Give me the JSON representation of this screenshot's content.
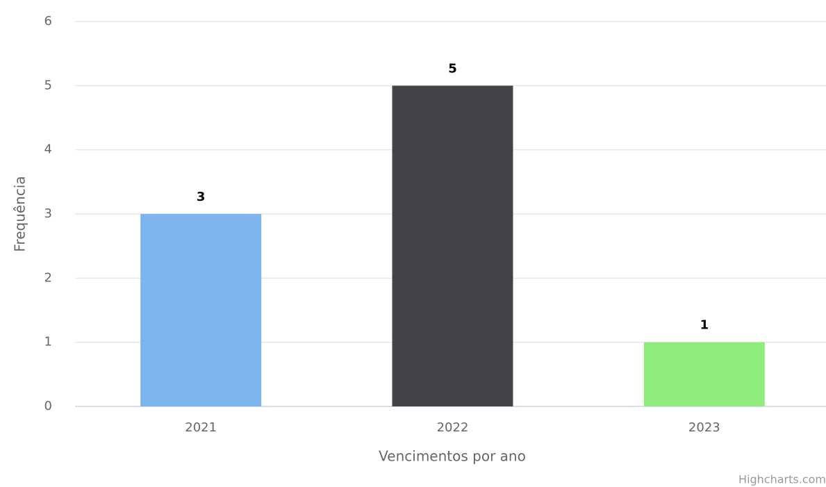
{
  "chart_data": {
    "type": "bar",
    "categories": [
      "2021",
      "2022",
      "2023"
    ],
    "values": [
      3,
      5,
      1
    ],
    "colors": [
      "#7cb5ec",
      "#434348",
      "#90ed7d"
    ],
    "ylim": [
      0,
      6
    ],
    "yticks": [
      0,
      1,
      2,
      3,
      4,
      5,
      6
    ],
    "grid": true,
    "y_label": "Frequência",
    "x_label": "Vencimentos por ano",
    "credits": "Highcharts.com"
  }
}
